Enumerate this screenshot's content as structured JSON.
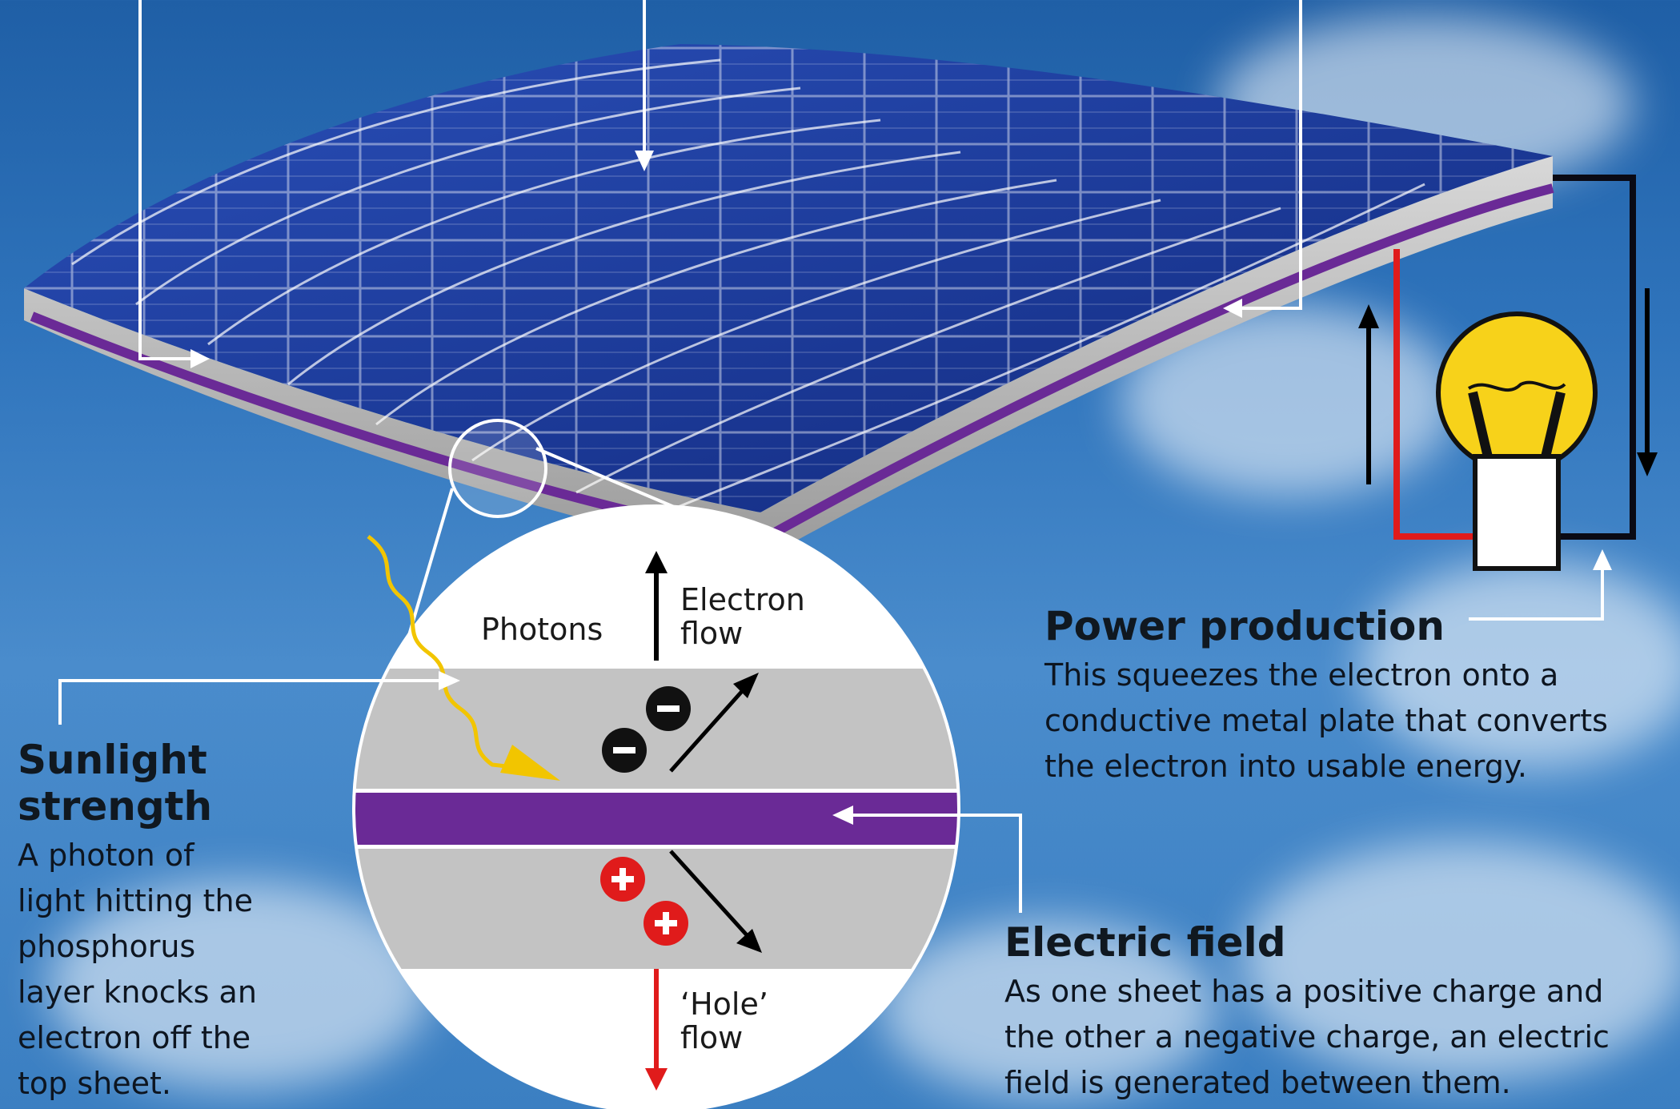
{
  "labels": {
    "photons": "Photons",
    "electron_flow": "Electron\nflow",
    "hole_flow": "‘Hole’\nflow"
  },
  "sunlight": {
    "title": "Sunlight\nstrength",
    "body": "A photon of\nlight hitting the\nphosphorus\nlayer knocks an\nelectron off the\ntop sheet."
  },
  "power": {
    "title": "Power production",
    "body": "This squeezes the electron onto a\nconductive metal plate that converts\nthe electron into usable energy."
  },
  "field": {
    "title": "Electric field",
    "body": "As one sheet has a positive charge and\nthe other a negative charge, an electric\nfield is generated between them."
  },
  "charges": {
    "negative_symbol": "−",
    "positive_symbol": "+"
  },
  "colors": {
    "panel_blue": "#1d3f9e",
    "purple_layer": "#6a2a96",
    "electron_arrow": "#000000",
    "hole_arrow": "#e01b1b",
    "photon": "#f2c500",
    "bulb": "#f7d21a",
    "wire_red": "#e01b1b",
    "wire_black": "#0a0a14"
  },
  "icons": [
    "lightbulb-icon",
    "photon-wave-icon",
    "electron-icon",
    "hole-icon"
  ]
}
